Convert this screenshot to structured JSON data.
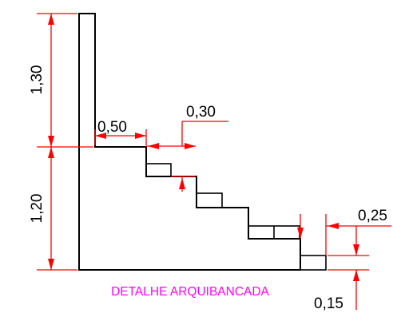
{
  "colors": {
    "outline": "#000000",
    "dimension": "#ff0000",
    "title": "#ff00ff",
    "background": "#ffffff"
  },
  "title": "DETALHE ARQUIBANCADA",
  "dimensions": {
    "upper_wall_height": "1,30",
    "lower_wall_height": "1,20",
    "top_tread_width": "0,50",
    "step_tread": "0,30",
    "step_riser": "0,25",
    "slab_thickness": "0,15"
  }
}
